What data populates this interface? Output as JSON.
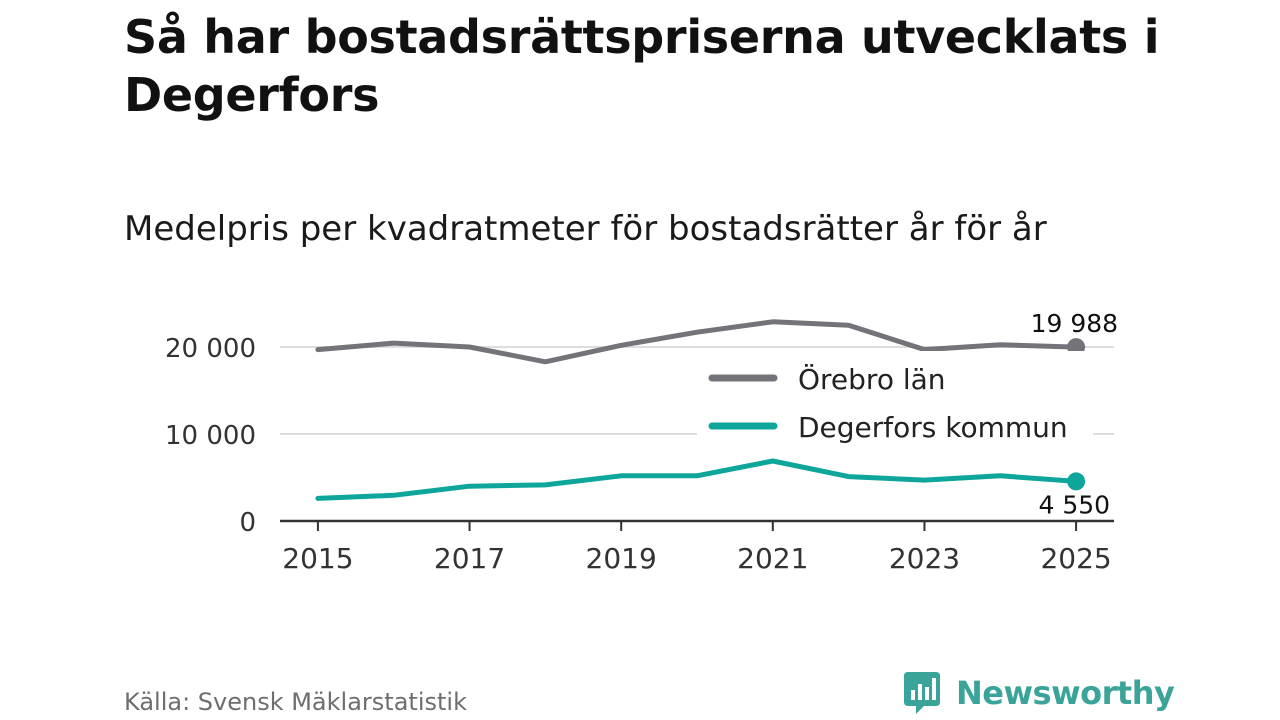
{
  "title": "Så har bostadsrättspriserna utvecklats i Degerfors",
  "subtitle": "Medelpris per kvadratmeter för bostadsrätter år för år",
  "source": "Källa: Svensk Mäklarstatistik",
  "brand": {
    "name": "Newsworthy",
    "icon": "newsworthy-logo-icon",
    "color": "#3aa39a"
  },
  "chart_data": {
    "type": "line",
    "title": "Så har bostadsrättspriserna utvecklats i Degerfors",
    "subtitle": "Medelpris per kvadratmeter för bostadsrätter år för år",
    "xlabel": "",
    "ylabel": "",
    "x": [
      2015,
      2016,
      2017,
      2018,
      2019,
      2020,
      2021,
      2022,
      2023,
      2024,
      2025
    ],
    "xticks": [
      2015,
      2017,
      2019,
      2021,
      2023,
      2025
    ],
    "xtick_labels": [
      "2015",
      "2017",
      "2019",
      "2021",
      "2023",
      "2025"
    ],
    "yticks": [
      0,
      10000,
      20000
    ],
    "ytick_labels": [
      "0",
      "10 000",
      "20 000"
    ],
    "ylim": [
      0,
      23500
    ],
    "xlim": [
      2014.5,
      2025.5
    ],
    "grid": true,
    "legend_position": "center-right",
    "series": [
      {
        "name": "Örebro län",
        "color": "#74737a",
        "values": [
          19700,
          20450,
          20000,
          18300,
          20200,
          21700,
          22900,
          22500,
          19700,
          20250,
          19988
        ],
        "end_label": "19 988"
      },
      {
        "name": "Degerfors kommun",
        "color": "#0ea59b",
        "values": [
          2600,
          2950,
          4000,
          4150,
          5200,
          5200,
          6900,
          5100,
          4700,
          5200,
          4550
        ],
        "end_label": "4 550"
      }
    ]
  }
}
